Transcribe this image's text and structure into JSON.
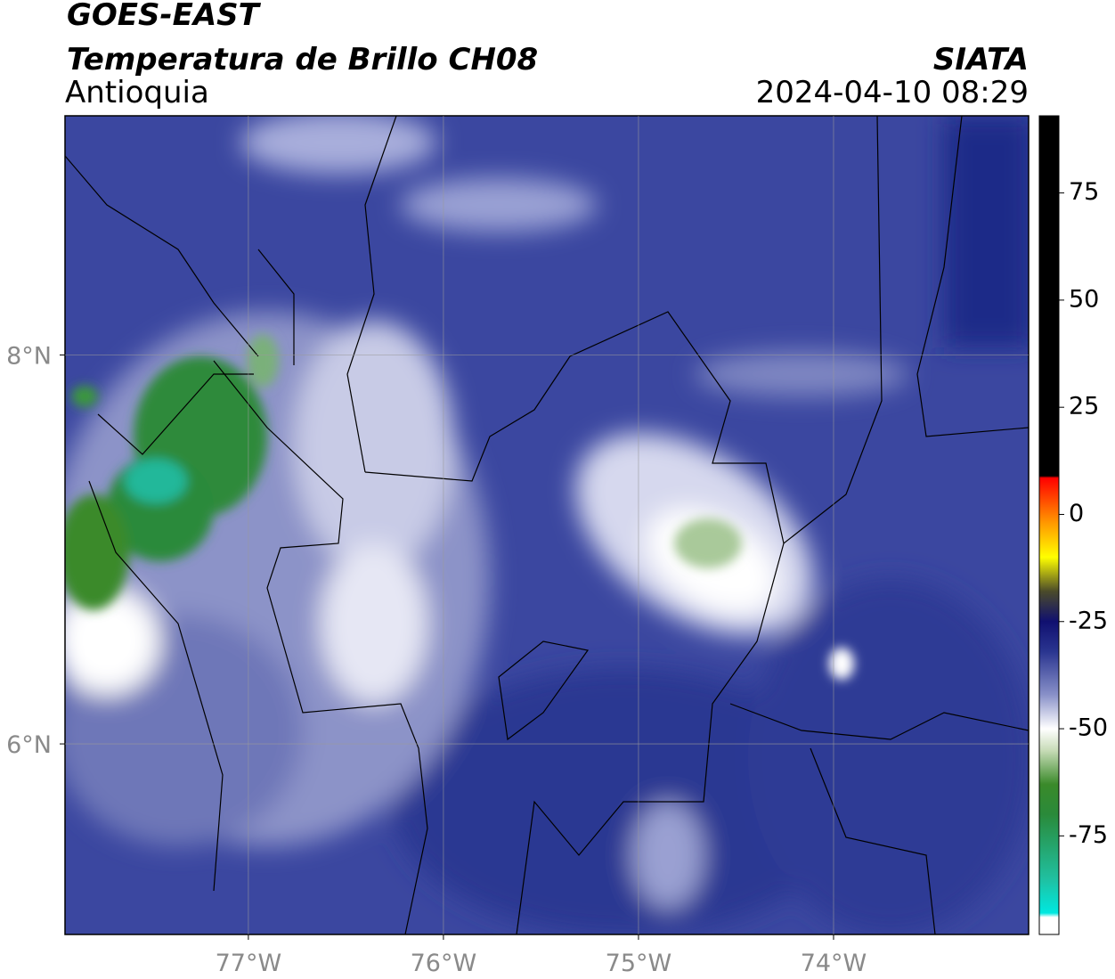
{
  "header": {
    "title": "GOES-EAST",
    "subtitle": "Temperatura de Brillo CH08",
    "region": "Antioquia",
    "source": "SIATA",
    "datetime": "2024-04-10 08:29"
  },
  "map": {
    "lon_range": [
      -77.94,
      -73.0
    ],
    "lat_range": [
      5.02,
      9.23
    ],
    "grid": true,
    "grid_color": "#9a9a9a",
    "lon_ticks": [
      {
        "value": -77,
        "label": "77°W"
      },
      {
        "value": -76,
        "label": "76°W"
      },
      {
        "value": -75,
        "label": "75°W"
      },
      {
        "value": -74,
        "label": "74°W"
      }
    ],
    "lat_ticks": [
      {
        "value": 8,
        "label": "8°N"
      },
      {
        "value": 6,
        "label": "6°N"
      }
    ]
  },
  "colorbar": {
    "range": [
      -98,
      93
    ],
    "ticks": [
      75,
      50,
      25,
      0,
      -25,
      -50,
      -75
    ],
    "stops": [
      {
        "value": 93,
        "color": "#000000"
      },
      {
        "value": 9,
        "color": "#000000"
      },
      {
        "value": 8.5,
        "color": "#ff0000"
      },
      {
        "value": -2,
        "color": "#ff9900"
      },
      {
        "value": -10,
        "color": "#ffff00"
      },
      {
        "value": -18,
        "color": "#4a4a2a"
      },
      {
        "value": -25,
        "color": "#101070"
      },
      {
        "value": -32,
        "color": "#2a3590"
      },
      {
        "value": -42,
        "color": "#8890c8"
      },
      {
        "value": -50,
        "color": "#ffffff"
      },
      {
        "value": -55,
        "color": "#c8dcb8"
      },
      {
        "value": -63,
        "color": "#3a8a2a"
      },
      {
        "value": -70,
        "color": "#2a8a3a"
      },
      {
        "value": -85,
        "color": "#20c0a0"
      },
      {
        "value": -93,
        "color": "#00e8e0"
      },
      {
        "value": -94,
        "color": "#ffffff"
      },
      {
        "value": -98,
        "color": "#ffffff"
      }
    ]
  }
}
